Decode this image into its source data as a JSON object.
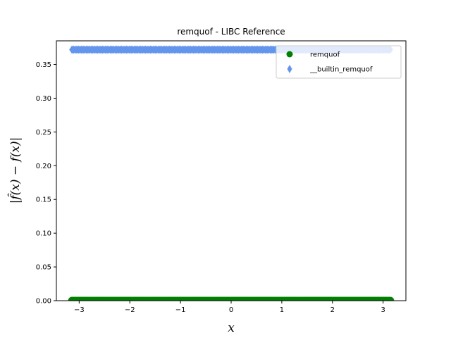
{
  "chart_data": {
    "type": "scatter",
    "title": "remquof - LIBC Reference",
    "xlabel": "x",
    "ylabel": "|f̂(x) − f(x)|",
    "xlim": [
      -3.45,
      3.45
    ],
    "ylim": [
      0.0,
      0.385
    ],
    "x_ticks": [
      -3,
      -2,
      -1,
      0,
      1,
      2,
      3
    ],
    "x_tick_labels": [
      "−3",
      "−2",
      "−1",
      "0",
      "1",
      "2",
      "3"
    ],
    "y_ticks": [
      0.0,
      0.05,
      0.1,
      0.15,
      0.2,
      0.25,
      0.3,
      0.35
    ],
    "y_tick_labels": [
      "0.00",
      "0.05",
      "0.10",
      "0.15",
      "0.20",
      "0.25",
      "0.30",
      "0.35"
    ],
    "grid": false,
    "legend_position": "top-right",
    "x_range": [
      -3.1416,
      3.1416
    ],
    "series": [
      {
        "name": "remquof",
        "marker": "circle",
        "color": "#008000",
        "y_constant": 0.0
      },
      {
        "name": "__builtin_remquof",
        "marker": "thin_diamond",
        "color": "#6495ED",
        "y_constant": 0.372
      }
    ]
  }
}
